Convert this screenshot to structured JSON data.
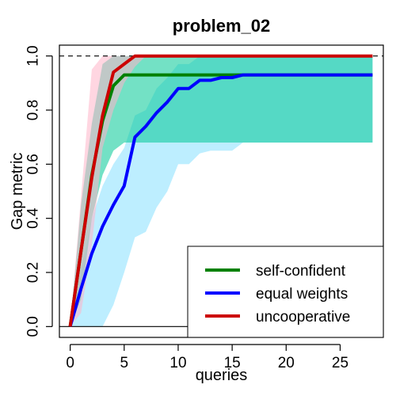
{
  "chart_data": {
    "type": "line",
    "title": "problem_02",
    "xlabel": "queries",
    "ylabel": "Gap metric",
    "xlim": [
      -1,
      29
    ],
    "ylim": [
      -0.04,
      1.04
    ],
    "xticks": [
      0,
      5,
      10,
      15,
      20,
      25
    ],
    "yticks": [
      0.0,
      0.2,
      0.4,
      0.6,
      0.8,
      1.0
    ],
    "xtick_labels": [
      "0",
      "5",
      "10",
      "15",
      "20",
      "25"
    ],
    "ytick_labels": [
      "0.0",
      "0.2",
      "0.4",
      "0.6",
      "0.8",
      "1.0"
    ],
    "reference_line_y": 1.0,
    "baseline_y": 0.0,
    "legend_position": "bottom-right",
    "series": [
      {
        "name": "self-confident",
        "color": "#008000",
        "band_color": "#00c896",
        "x": [
          0,
          1,
          2,
          3,
          4,
          5,
          6,
          7,
          8,
          9,
          10,
          11,
          12,
          13,
          14,
          15,
          16,
          17,
          18,
          19,
          20,
          21,
          22,
          23,
          24,
          25,
          26,
          27,
          28
        ],
        "values": [
          0.0,
          0.28,
          0.56,
          0.76,
          0.89,
          0.93,
          0.93,
          0.93,
          0.93,
          0.93,
          0.93,
          0.93,
          0.93,
          0.93,
          0.93,
          0.93,
          0.93,
          0.93,
          0.93,
          0.93,
          0.93,
          0.93,
          0.93,
          0.93,
          0.93,
          0.93,
          0.93,
          0.93,
          0.93
        ],
        "lower": [
          0.0,
          0.1,
          0.4,
          0.56,
          0.65,
          0.68,
          0.68,
          0.68,
          0.68,
          0.68,
          0.68,
          0.68,
          0.68,
          0.68,
          0.68,
          0.68,
          0.68,
          0.68,
          0.68,
          0.68,
          0.68,
          0.68,
          0.68,
          0.68,
          0.68,
          0.68,
          0.68,
          0.68,
          0.68
        ],
        "upper": [
          0.0,
          0.45,
          0.75,
          0.97,
          1.0,
          1.0,
          1.0,
          1.0,
          1.0,
          1.0,
          1.0,
          1.0,
          1.0,
          1.0,
          1.0,
          1.0,
          1.0,
          1.0,
          1.0,
          1.0,
          1.0,
          1.0,
          1.0,
          1.0,
          1.0,
          1.0,
          1.0,
          1.0,
          1.0
        ]
      },
      {
        "name": "equal weights",
        "color": "#0000ff",
        "band_color": "#87e0ff",
        "x": [
          0,
          1,
          2,
          3,
          4,
          5,
          6,
          7,
          8,
          9,
          10,
          11,
          12,
          13,
          14,
          15,
          16,
          17,
          18,
          19,
          20,
          21,
          22,
          23,
          24,
          25,
          26,
          27,
          28
        ],
        "values": [
          0.0,
          0.14,
          0.27,
          0.37,
          0.45,
          0.52,
          0.7,
          0.74,
          0.79,
          0.83,
          0.88,
          0.88,
          0.91,
          0.91,
          0.92,
          0.92,
          0.93,
          0.93,
          0.93,
          0.93,
          0.93,
          0.93,
          0.93,
          0.93,
          0.93,
          0.93,
          0.93,
          0.93,
          0.93
        ],
        "lower": [
          0.0,
          0.0,
          0.0,
          0.0,
          0.08,
          0.2,
          0.33,
          0.35,
          0.44,
          0.5,
          0.6,
          0.6,
          0.64,
          0.65,
          0.65,
          0.65,
          0.68,
          0.68,
          0.68,
          0.68,
          0.68,
          0.68,
          0.68,
          0.68,
          0.68,
          0.68,
          0.68,
          0.68,
          0.68
        ],
        "upper": [
          0.0,
          0.2,
          0.4,
          0.52,
          0.6,
          0.66,
          0.78,
          0.8,
          0.88,
          0.92,
          0.97,
          0.97,
          1.0,
          1.0,
          1.0,
          1.0,
          1.0,
          1.0,
          1.0,
          1.0,
          1.0,
          1.0,
          1.0,
          1.0,
          1.0,
          1.0,
          1.0,
          1.0,
          1.0
        ]
      },
      {
        "name": "uncooperative",
        "color": "#cc0000",
        "band_color": "#ffb4c8",
        "x": [
          0,
          1,
          2,
          3,
          4,
          5,
          6,
          7,
          8,
          9,
          10,
          11,
          12,
          13,
          14,
          15,
          16,
          17,
          18,
          19,
          20,
          21,
          22,
          23,
          24,
          25,
          26,
          27,
          28
        ],
        "values": [
          0.0,
          0.28,
          0.55,
          0.78,
          0.94,
          0.97,
          1.0,
          1.0,
          1.0,
          1.0,
          1.0,
          1.0,
          1.0,
          1.0,
          1.0,
          1.0,
          1.0,
          1.0,
          1.0,
          1.0,
          1.0,
          1.0,
          1.0,
          1.0,
          1.0,
          1.0,
          1.0,
          1.0,
          1.0
        ],
        "lower": [
          0.0,
          0.05,
          0.3,
          0.66,
          0.8,
          0.9,
          0.96,
          1.0,
          1.0,
          1.0,
          1.0,
          1.0,
          1.0,
          1.0,
          1.0,
          1.0,
          1.0,
          1.0,
          1.0,
          1.0,
          1.0,
          1.0,
          1.0,
          1.0,
          1.0,
          1.0,
          1.0,
          1.0,
          1.0
        ],
        "upper": [
          0.0,
          0.48,
          0.95,
          1.0,
          1.0,
          1.0,
          1.0,
          1.0,
          1.0,
          1.0,
          1.0,
          1.0,
          1.0,
          1.0,
          1.0,
          1.0,
          1.0,
          1.0,
          1.0,
          1.0,
          1.0,
          1.0,
          1.0,
          1.0,
          1.0,
          1.0,
          1.0,
          1.0,
          1.0
        ]
      }
    ]
  }
}
